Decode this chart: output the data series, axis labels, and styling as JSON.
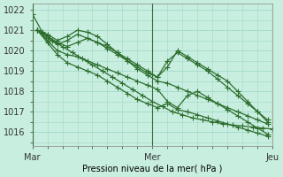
{
  "xlabel": "Pression niveau de la mer( hPa )",
  "bg_color": "#c8eee0",
  "grid_color": "#a0d8c8",
  "line_color": "#2d6e2d",
  "ylim": [
    1015.3,
    1022.3
  ],
  "yticks": [
    1016,
    1017,
    1018,
    1019,
    1020,
    1021,
    1022
  ],
  "xtick_positions": [
    0,
    48,
    96
  ],
  "xtick_labels": [
    "Mar",
    "Mer",
    "Jeu"
  ],
  "vline_x": [
    0,
    48,
    96
  ],
  "series": [
    {
      "x": [
        0,
        4,
        8,
        12,
        16,
        20,
        24,
        28,
        32,
        36,
        40,
        44,
        48,
        52,
        56,
        60,
        64,
        68,
        72,
        76,
        80,
        84,
        88,
        92,
        96
      ],
      "y": [
        1021.8,
        1020.9,
        1020.5,
        1020.2,
        1019.9,
        1019.6,
        1019.3,
        1019.0,
        1018.7,
        1018.4,
        1018.1,
        1017.8,
        1017.5,
        1017.25,
        1017.0,
        1016.85,
        1016.7,
        1016.6,
        1016.5,
        1016.42,
        1016.35,
        1016.3,
        1016.25,
        1016.2,
        1016.15
      ]
    },
    {
      "x": [
        2,
        6,
        10,
        14,
        18,
        22,
        26,
        30,
        34,
        38,
        42,
        46,
        50,
        54,
        58,
        62,
        66,
        70,
        74,
        78,
        82,
        86,
        90,
        94
      ],
      "y": [
        1021.0,
        1020.8,
        1020.5,
        1020.7,
        1021.0,
        1020.9,
        1020.7,
        1020.3,
        1019.9,
        1019.5,
        1019.1,
        1018.8,
        1018.5,
        1018.4,
        1018.2,
        1018.0,
        1017.8,
        1017.6,
        1017.4,
        1017.2,
        1017.0,
        1016.8,
        1016.6,
        1016.4
      ]
    },
    {
      "x": [
        2,
        6,
        10,
        14,
        18,
        22,
        26,
        30,
        34,
        38,
        42,
        46,
        50,
        54,
        58,
        62,
        66,
        70,
        74,
        78,
        82,
        86,
        90,
        94
      ],
      "y": [
        1021.0,
        1020.6,
        1020.3,
        1020.5,
        1020.8,
        1020.6,
        1020.4,
        1020.1,
        1019.8,
        1019.5,
        1019.2,
        1018.9,
        1018.7,
        1019.5,
        1019.9,
        1019.6,
        1019.3,
        1019.0,
        1018.6,
        1018.2,
        1017.8,
        1017.4,
        1017.0,
        1016.6
      ]
    },
    {
      "x": [
        2,
        6,
        10,
        14,
        18,
        22,
        26,
        30,
        34,
        38,
        42,
        46,
        50,
        54,
        58,
        62,
        66,
        70,
        74,
        78,
        82,
        86,
        90,
        94
      ],
      "y": [
        1021.0,
        1020.7,
        1020.4,
        1020.2,
        1020.4,
        1020.6,
        1020.4,
        1020.2,
        1019.9,
        1019.6,
        1019.3,
        1019.0,
        1018.7,
        1019.2,
        1020.0,
        1019.7,
        1019.4,
        1019.1,
        1018.8,
        1018.5,
        1018.0,
        1017.5,
        1017.0,
        1016.5
      ]
    },
    {
      "x": [
        2,
        6,
        10,
        14,
        18,
        22,
        26,
        30,
        34,
        38,
        42,
        46,
        50,
        54,
        58,
        62,
        66,
        70,
        74,
        78,
        82,
        86,
        90,
        94
      ],
      "y": [
        1021.0,
        1020.5,
        1020.0,
        1019.8,
        1019.7,
        1019.5,
        1019.3,
        1019.1,
        1018.9,
        1018.7,
        1018.5,
        1018.3,
        1018.1,
        1017.5,
        1017.2,
        1017.8,
        1018.0,
        1017.7,
        1017.4,
        1017.1,
        1016.8,
        1016.5,
        1016.2,
        1015.9
      ]
    },
    {
      "x": [
        2,
        6,
        10,
        14,
        18,
        22,
        26,
        30,
        34,
        38,
        42,
        46,
        50,
        54,
        58,
        62,
        66,
        70,
        74,
        78,
        82,
        86,
        90,
        94
      ],
      "y": [
        1021.0,
        1020.4,
        1019.8,
        1019.4,
        1019.2,
        1019.0,
        1018.8,
        1018.5,
        1018.2,
        1017.9,
        1017.6,
        1017.4,
        1017.2,
        1017.4,
        1017.1,
        1017.0,
        1016.85,
        1016.7,
        1016.55,
        1016.4,
        1016.25,
        1016.1,
        1015.95,
        1015.8
      ]
    }
  ],
  "marker": "+",
  "markersize": 4.5,
  "linewidth": 0.9
}
